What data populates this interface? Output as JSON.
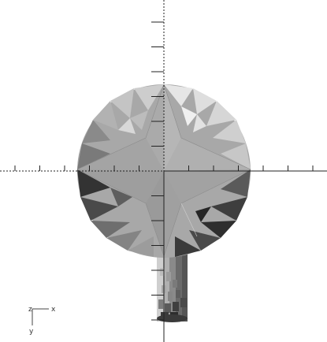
{
  "viewport": {
    "background": "#ffffff",
    "axis_color": "#222222",
    "model_base_color": "#a0a0a0"
  },
  "axes_indicator": {
    "x_label": "x",
    "y_label": "y",
    "z_label": "z"
  }
}
